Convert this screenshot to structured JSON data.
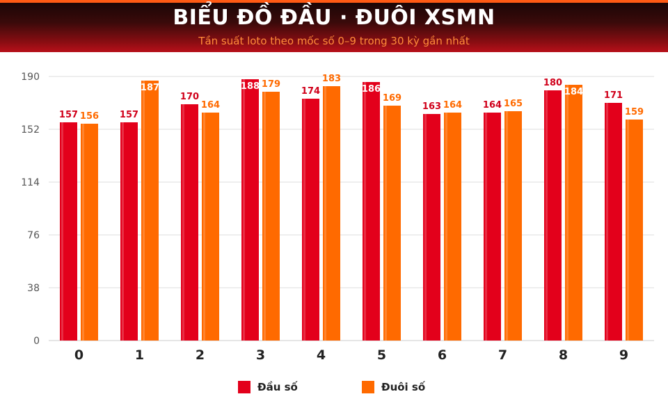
{
  "header": {
    "title": "BIỂU ĐỒ ĐẦU · ĐUÔI XSMN",
    "subtitle": "Tần suất loto theo mốc số 0–9 trong 30 kỳ gần nhất"
  },
  "colors": {
    "dau": "#e3001b",
    "duoi": "#ff6a00",
    "dau_label": "#d0001a",
    "duoi_label": "#ff6a00",
    "grid": "#dddddd"
  },
  "chart_data": {
    "type": "bar",
    "categories": [
      "0",
      "1",
      "2",
      "3",
      "4",
      "5",
      "6",
      "7",
      "8",
      "9"
    ],
    "series": [
      {
        "name": "Đầu số",
        "values": [
          157,
          157,
          170,
          188,
          174,
          186,
          163,
          164,
          180,
          171
        ]
      },
      {
        "name": "Đuôi số",
        "values": [
          156,
          187,
          164,
          179,
          183,
          169,
          164,
          165,
          184,
          159
        ]
      }
    ],
    "ylim": [
      0,
      190
    ],
    "yticks": [
      0,
      38,
      76,
      114,
      152,
      190
    ],
    "grid": true,
    "legend_position": "bottom-center"
  },
  "legend": {
    "items": [
      {
        "label": "Đầu số",
        "color": "#e3001b"
      },
      {
        "label": "Đuôi số",
        "color": "#ff6a00"
      }
    ]
  }
}
